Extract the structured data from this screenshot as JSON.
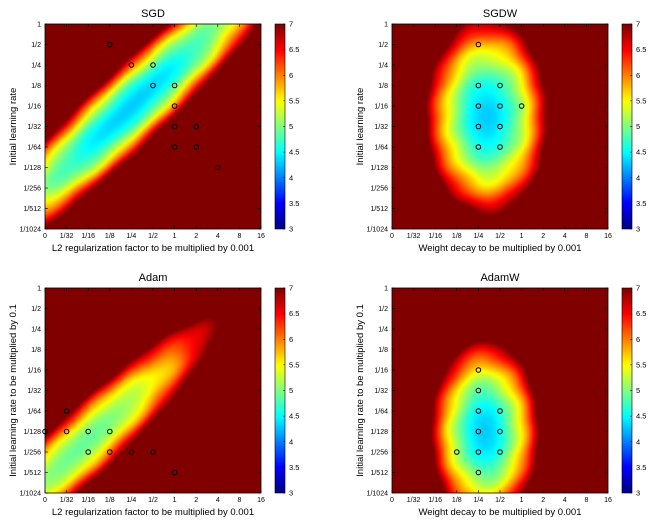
{
  "figure": {
    "colormap": "jet",
    "colors": {
      "jet_stops": [
        "#00008f",
        "#0000ff",
        "#00ffff",
        "#ffff00",
        "#ff0000",
        "#800000"
      ],
      "marker": "#000000"
    }
  },
  "chart_data": [
    {
      "type": "heatmap",
      "title": "SGD",
      "xlabel": "L2 regularization factor to be multiplied by 0.001",
      "ylabel": "Initial learning rate",
      "x_tick_labels": [
        "0",
        "1/32",
        "1/16",
        "1/8",
        "1/4",
        "1/2",
        "1",
        "2",
        "4",
        "8",
        "16"
      ],
      "y_tick_labels": [
        "1",
        "1/2",
        "1/4",
        "1/8",
        "1/16",
        "1/32",
        "1/64",
        "1/128",
        "1/256",
        "1/512",
        "1/1024"
      ],
      "colorbar": {
        "min": 3,
        "max": 7,
        "ticks": [
          "3",
          "3.5",
          "4",
          "4.5",
          "5",
          "5.5",
          "6",
          "6.5",
          "7"
        ]
      },
      "z_model": {
        "kind": "diagonal",
        "center": [
          4,
          4
        ],
        "best": 4.3,
        "a": 0.9,
        "b": 0.025,
        "floor": 4.8
      },
      "markers": [
        [
          3,
          1
        ],
        [
          4,
          2
        ],
        [
          5,
          2
        ],
        [
          5,
          3
        ],
        [
          6,
          3
        ],
        [
          6,
          4
        ],
        [
          6,
          5
        ],
        [
          7,
          5
        ],
        [
          6,
          6
        ],
        [
          7,
          6
        ],
        [
          8,
          7
        ]
      ]
    },
    {
      "type": "heatmap",
      "title": "SGDW",
      "xlabel": "Weight decay to be multiplied by 0.001",
      "ylabel": "Initial learning rate",
      "x_tick_labels": [
        "0",
        "1/32",
        "1/16",
        "1/8",
        "1/4",
        "1/2",
        "1",
        "2",
        "4",
        "8",
        "16"
      ],
      "y_tick_labels": [
        "1",
        "1/2",
        "1/4",
        "1/8",
        "1/16",
        "1/32",
        "1/64",
        "1/128",
        "1/256",
        "1/512",
        "1/1024"
      ],
      "colorbar": {
        "min": 3,
        "max": 7,
        "ticks": [
          "3",
          "3.5",
          "4",
          "4.5",
          "5",
          "5.5",
          "6",
          "6.5",
          "7"
        ]
      },
      "z_model": {
        "kind": "ellipse",
        "center": [
          4.4,
          4.5
        ],
        "best": 4.3,
        "a": 0.35,
        "b": 0.12,
        "floor": 4.8
      },
      "markers": [
        [
          4,
          1
        ],
        [
          4,
          3
        ],
        [
          5,
          3
        ],
        [
          4,
          4
        ],
        [
          5,
          4
        ],
        [
          6,
          4
        ],
        [
          4,
          5
        ],
        [
          5,
          5
        ],
        [
          4,
          6
        ],
        [
          5,
          6
        ]
      ]
    },
    {
      "type": "heatmap",
      "title": "Adam",
      "xlabel": "L2 regularization factor to be multiplied by 0.001",
      "ylabel": "Initial learning rate to be multiplied by 0.1",
      "x_tick_labels": [
        "0",
        "1/32",
        "1/16",
        "1/8",
        "1/4",
        "1/2",
        "1",
        "2",
        "4",
        "8",
        "16"
      ],
      "y_tick_labels": [
        "1",
        "1/2",
        "1/4",
        "1/8",
        "1/16",
        "1/32",
        "1/64",
        "1/128",
        "1/256",
        "1/512",
        "1/1024"
      ],
      "colorbar": {
        "min": 3,
        "max": 7,
        "ticks": [
          "3",
          "3.5",
          "4",
          "4.5",
          "5",
          "5.5",
          "6",
          "6.5",
          "7"
        ]
      },
      "z_model": {
        "kind": "band",
        "center": [
          1.8,
          7.6
        ],
        "best": 4.9,
        "a": 0.9,
        "b": 0.03,
        "floor": 5.1
      },
      "markers": [
        [
          1,
          6
        ],
        [
          0,
          7
        ],
        [
          1,
          7
        ],
        [
          2,
          7
        ],
        [
          3,
          7
        ],
        [
          2,
          8
        ],
        [
          3,
          8
        ],
        [
          4,
          8
        ],
        [
          5,
          8
        ],
        [
          6,
          9
        ]
      ]
    },
    {
      "type": "heatmap",
      "title": "AdamW",
      "xlabel": "Weight decay to be multiplied by 0.001",
      "ylabel": "Initial learning rate to be multiplied by 0.1",
      "x_tick_labels": [
        "0",
        "1/32",
        "1/16",
        "1/8",
        "1/4",
        "1/2",
        "1",
        "2",
        "4",
        "8",
        "16"
      ],
      "y_tick_labels": [
        "1",
        "1/2",
        "1/4",
        "1/8",
        "1/16",
        "1/32",
        "1/64",
        "1/128",
        "1/256",
        "1/512",
        "1/1024"
      ],
      "colorbar": {
        "min": 3,
        "max": 7,
        "ticks": [
          "3",
          "3.5",
          "4",
          "4.5",
          "5",
          "5.5",
          "6",
          "6.5",
          "7"
        ]
      },
      "z_model": {
        "kind": "ellipse",
        "center": [
          4.3,
          7.0
        ],
        "best": 4.3,
        "a": 0.45,
        "b": 0.14,
        "floor": 4.7
      },
      "markers": [
        [
          4,
          4
        ],
        [
          4,
          5
        ],
        [
          4,
          6
        ],
        [
          5,
          6
        ],
        [
          4,
          7
        ],
        [
          5,
          7
        ],
        [
          3,
          8
        ],
        [
          4,
          8
        ],
        [
          5,
          8
        ],
        [
          4,
          9
        ]
      ]
    }
  ]
}
